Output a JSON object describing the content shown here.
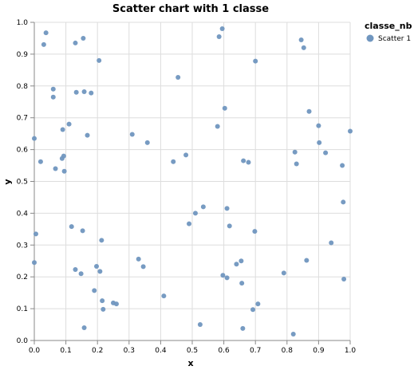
{
  "chart_data": {
    "type": "scatter",
    "title": "Scatter chart with 1 classe",
    "xlabel": "x",
    "ylabel": "y",
    "xlim": [
      0,
      1
    ],
    "ylim": [
      0,
      1
    ],
    "x_ticks": [
      "0.0",
      "0.1",
      "0.2",
      "0.3",
      "0.4",
      "0.5",
      "0.6",
      "0.7",
      "0.8",
      "0.9",
      "1.0"
    ],
    "y_ticks": [
      "0.0",
      "0.1",
      "0.2",
      "0.3",
      "0.4",
      "0.5",
      "0.6",
      "0.7",
      "0.8",
      "0.9",
      "1.0"
    ],
    "grid": true,
    "legend": {
      "title": "classe_nb",
      "placement": "top-right"
    },
    "series": [
      {
        "name": "Scatter 1",
        "color": "#7096bf",
        "points": [
          [
            0.0,
            0.245
          ],
          [
            0.005,
            0.335
          ],
          [
            0.0,
            0.635
          ],
          [
            0.02,
            0.562
          ],
          [
            0.03,
            0.93
          ],
          [
            0.037,
            0.967
          ],
          [
            0.06,
            0.79
          ],
          [
            0.06,
            0.765
          ],
          [
            0.067,
            0.54
          ],
          [
            0.088,
            0.572
          ],
          [
            0.09,
            0.663
          ],
          [
            0.093,
            0.58
          ],
          [
            0.095,
            0.532
          ],
          [
            0.11,
            0.68
          ],
          [
            0.118,
            0.358
          ],
          [
            0.13,
            0.223
          ],
          [
            0.13,
            0.935
          ],
          [
            0.133,
            0.78
          ],
          [
            0.148,
            0.21
          ],
          [
            0.153,
            0.345
          ],
          [
            0.155,
            0.95
          ],
          [
            0.158,
            0.782
          ],
          [
            0.158,
            0.04
          ],
          [
            0.168,
            0.645
          ],
          [
            0.18,
            0.778
          ],
          [
            0.19,
            0.157
          ],
          [
            0.197,
            0.233
          ],
          [
            0.205,
            0.88
          ],
          [
            0.208,
            0.217
          ],
          [
            0.213,
            0.315
          ],
          [
            0.215,
            0.125
          ],
          [
            0.218,
            0.098
          ],
          [
            0.25,
            0.118
          ],
          [
            0.26,
            0.115
          ],
          [
            0.31,
            0.648
          ],
          [
            0.33,
            0.256
          ],
          [
            0.345,
            0.232
          ],
          [
            0.358,
            0.622
          ],
          [
            0.41,
            0.14
          ],
          [
            0.44,
            0.562
          ],
          [
            0.455,
            0.827
          ],
          [
            0.48,
            0.583
          ],
          [
            0.49,
            0.367
          ],
          [
            0.51,
            0.4
          ],
          [
            0.525,
            0.05
          ],
          [
            0.535,
            0.42
          ],
          [
            0.58,
            0.673
          ],
          [
            0.585,
            0.955
          ],
          [
            0.595,
            0.98
          ],
          [
            0.597,
            0.205
          ],
          [
            0.603,
            0.73
          ],
          [
            0.61,
            0.197
          ],
          [
            0.61,
            0.415
          ],
          [
            0.618,
            0.36
          ],
          [
            0.64,
            0.24
          ],
          [
            0.655,
            0.25
          ],
          [
            0.657,
            0.18
          ],
          [
            0.66,
            0.038
          ],
          [
            0.662,
            0.565
          ],
          [
            0.678,
            0.56
          ],
          [
            0.692,
            0.097
          ],
          [
            0.698,
            0.343
          ],
          [
            0.7,
            0.878
          ],
          [
            0.708,
            0.115
          ],
          [
            0.79,
            0.212
          ],
          [
            0.82,
            0.02
          ],
          [
            0.825,
            0.592
          ],
          [
            0.83,
            0.555
          ],
          [
            0.845,
            0.945
          ],
          [
            0.853,
            0.92
          ],
          [
            0.862,
            0.252
          ],
          [
            0.87,
            0.72
          ],
          [
            0.9,
            0.675
          ],
          [
            0.902,
            0.622
          ],
          [
            0.922,
            0.59
          ],
          [
            0.94,
            0.307
          ],
          [
            0.975,
            0.55
          ],
          [
            0.978,
            0.435
          ],
          [
            0.98,
            0.193
          ],
          [
            1.0,
            0.658
          ]
        ]
      }
    ]
  }
}
